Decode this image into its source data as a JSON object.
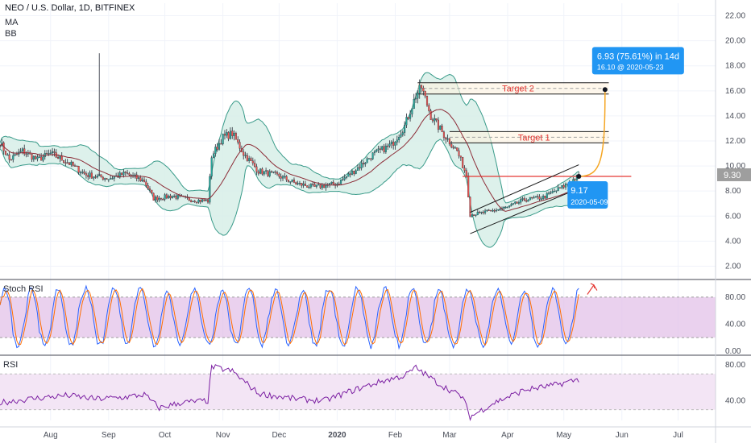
{
  "header": {
    "title": "NEO / U.S. Dollar, 1D, BITFINEX",
    "indicator1": "MA",
    "indicator2": "BB"
  },
  "colors": {
    "candle_up": "#26a69a",
    "candle_down": "#ef5350",
    "bb_fill": "#d7efe8",
    "bb_line": "#3a9b8a",
    "ma_line": "#8c2b36",
    "target_line": "#1a1a1a",
    "target_label": "#e53935",
    "horizontal_level": "#e53935",
    "projection_curve": "#f5a623",
    "callout_bg": "#2196f3",
    "stoch_k": "#2962ff",
    "stoch_d": "#ff6d00",
    "stoch_band": "#e1bee7",
    "rsi_line": "#7b1fa2",
    "rsi_band": "#f3e5f5",
    "arrow": "#e53935"
  },
  "panels": {
    "stoch_label": "Stoch RSI",
    "rsi_label": "RSI"
  },
  "chart_data": {
    "type": "candlestick",
    "symbol": "NEO / U.S. Dollar",
    "interval": "1D",
    "exchange": "BITFINEX",
    "price_axis": {
      "ticks": [
        2,
        4,
        6,
        8,
        10,
        12,
        14,
        16,
        18,
        20,
        22
      ],
      "tick_labels": [
        "2.00",
        "4.00",
        "6.00",
        "8.00",
        "10.00",
        "12.00",
        "14.00",
        "16.00",
        "18.00",
        "20.00",
        "22.00"
      ],
      "ylim": [
        1,
        23
      ],
      "last_price": "9.30"
    },
    "time_axis": {
      "labels": [
        "Aug",
        "Sep",
        "Oct",
        "Nov",
        "Dec",
        "2020",
        "Feb",
        "Mar",
        "Apr",
        "May",
        "Jun",
        "Jul"
      ],
      "months": [
        "2019-08-01",
        "2019-09-01",
        "2019-10-01",
        "2019-11-01",
        "2019-12-01",
        "2020-01-01",
        "2020-02-01",
        "2020-03-01",
        "2020-04-01",
        "2020-05-01",
        "2020-06-01",
        "2020-07-01"
      ],
      "xlim": [
        "2019-07-05",
        "2020-07-21"
      ]
    },
    "price_keypoints": [
      [
        "2019-07-05",
        11.9
      ],
      [
        "2019-07-10",
        10.5
      ],
      [
        "2019-07-17",
        11.2
      ],
      [
        "2019-07-25",
        10.5
      ],
      [
        "2019-08-01",
        11.0
      ],
      [
        "2019-08-10",
        10.3
      ],
      [
        "2019-08-20",
        9.3
      ],
      [
        "2019-09-01",
        9.0
      ],
      [
        "2019-09-10",
        9.4
      ],
      [
        "2019-09-20",
        8.8
      ],
      [
        "2019-09-25",
        7.4
      ],
      [
        "2019-10-05",
        7.6
      ],
      [
        "2019-10-15",
        7.3
      ],
      [
        "2019-10-24",
        7.2
      ],
      [
        "2019-10-26",
        10.8
      ],
      [
        "2019-11-01",
        12.3
      ],
      [
        "2019-11-06",
        12.6
      ],
      [
        "2019-11-12",
        11.0
      ],
      [
        "2019-11-20",
        9.6
      ],
      [
        "2019-12-01",
        9.2
      ],
      [
        "2019-12-10",
        8.6
      ],
      [
        "2019-12-20",
        8.3
      ],
      [
        "2020-01-01",
        8.6
      ],
      [
        "2020-01-10",
        9.6
      ],
      [
        "2020-01-20",
        10.9
      ],
      [
        "2020-01-30",
        11.7
      ],
      [
        "2020-02-06",
        13.2
      ],
      [
        "2020-02-12",
        15.6
      ],
      [
        "2020-02-15",
        16.3
      ],
      [
        "2020-02-20",
        14.0
      ],
      [
        "2020-02-27",
        12.5
      ],
      [
        "2020-03-05",
        11.2
      ],
      [
        "2020-03-10",
        9.3
      ],
      [
        "2020-03-12",
        6.1
      ],
      [
        "2020-03-20",
        6.3
      ],
      [
        "2020-04-01",
        6.7
      ],
      [
        "2020-04-10",
        7.3
      ],
      [
        "2020-04-20",
        7.5
      ],
      [
        "2020-04-30",
        8.3
      ],
      [
        "2020-05-09",
        9.2
      ]
    ],
    "annotations": {
      "target2": {
        "label": "Target 2",
        "upper": 16.65,
        "lower": 15.75,
        "mid": 16.2,
        "from": "2020-02-13",
        "to": "2020-05-25"
      },
      "target1": {
        "label": "Target 1",
        "upper": 12.75,
        "lower": 11.85,
        "mid": 12.3,
        "from": "2020-03-01",
        "to": "2020-05-25"
      },
      "horizontal_level": {
        "value": 9.17,
        "from": "2020-03-08",
        "to": "2020-06-06"
      },
      "channel": {
        "lower_start": [
          "2020-03-12",
          4.6
        ],
        "lower_end": [
          "2020-05-09",
          8.2
        ],
        "upper_start": [
          "2020-03-12",
          6.3
        ],
        "upper_end": [
          "2020-05-09",
          10.1
        ]
      },
      "projection": {
        "from": [
          "2020-05-09",
          9.17
        ],
        "to": [
          "2020-05-23",
          16.1
        ]
      },
      "callout_top": {
        "line1": "6.93 (75.61%) in 14d",
        "line2": "16.10 @ 2020-05-23"
      },
      "callout_point": {
        "line1": "9.17",
        "line2": "2020-05-09"
      }
    },
    "stoch_rsi": {
      "axis_labels": [
        "80.00",
        "40.00",
        "0.00"
      ],
      "ticks": [
        80,
        40,
        0
      ],
      "band": [
        20,
        80
      ],
      "ylim": [
        -5,
        105
      ]
    },
    "rsi": {
      "axis_labels": [
        "80.00",
        "40.00"
      ],
      "ticks": [
        80,
        40
      ],
      "band": [
        30,
        70
      ],
      "ylim": [
        18,
        90
      ],
      "keypoints": [
        [
          "2019-07-05",
          38
        ],
        [
          "2019-07-25",
          43
        ],
        [
          "2019-08-10",
          46
        ],
        [
          "2019-08-25",
          42
        ],
        [
          "2019-09-10",
          44
        ],
        [
          "2019-09-20",
          47
        ],
        [
          "2019-09-28",
          32
        ],
        [
          "2019-10-10",
          38
        ],
        [
          "2019-10-24",
          40
        ],
        [
          "2019-10-26",
          78
        ],
        [
          "2019-11-06",
          73
        ],
        [
          "2019-11-20",
          48
        ],
        [
          "2019-12-10",
          42
        ],
        [
          "2019-12-25",
          40
        ],
        [
          "2020-01-10",
          52
        ],
        [
          "2020-01-25",
          62
        ],
        [
          "2020-02-06",
          68
        ],
        [
          "2020-02-12",
          77
        ],
        [
          "2020-02-25",
          58
        ],
        [
          "2020-03-08",
          44
        ],
        [
          "2020-03-12",
          22
        ],
        [
          "2020-03-25",
          38
        ],
        [
          "2020-04-10",
          52
        ],
        [
          "2020-04-25",
          57
        ],
        [
          "2020-05-09",
          64
        ]
      ]
    }
  }
}
